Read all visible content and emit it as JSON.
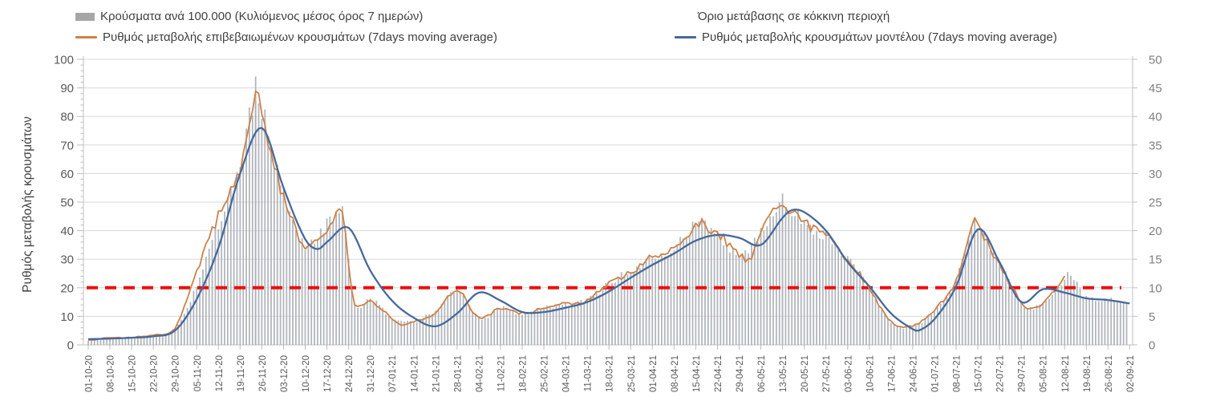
{
  "chart_data": {
    "type": "combo",
    "title": "",
    "background": "#ffffff",
    "grid_color": "#d9d9d9",
    "axis_color": "#bfbfbf",
    "left_axis": {
      "label": "Ρυθμός μεταβολής κρουσμάτων",
      "min": 0,
      "max": 100,
      "step": 10,
      "tick_labels": [
        "0",
        "10",
        "20",
        "30",
        "40",
        "50",
        "60",
        "70",
        "80",
        "90",
        "100"
      ],
      "text_color": "#595959"
    },
    "right_axis": {
      "min": 0,
      "max": 50,
      "step": 5,
      "tick_labels": [
        "0",
        "5",
        "10",
        "15",
        "20",
        "25",
        "30",
        "35",
        "40",
        "45",
        "50"
      ],
      "text_color": "#7f7f7f"
    },
    "x_tick_labels": [
      "01-10-20",
      "08-10-20",
      "15-10-20",
      "22-10-20",
      "29-10-20",
      "05-11-20",
      "12-11-20",
      "19-11-20",
      "26-11-20",
      "03-12-20",
      "10-12-20",
      "17-12-20",
      "24-12-20",
      "31-12-20",
      "07-01-21",
      "14-01-21",
      "21-01-21",
      "28-01-21",
      "04-02-21",
      "11-02-21",
      "18-02-21",
      "25-02-21",
      "04-03-21",
      "11-03-21",
      "18-03-21",
      "25-03-21",
      "01-04-21",
      "08-04-21",
      "15-04-21",
      "22-04-21",
      "29-04-21",
      "06-05-21",
      "13-05-21",
      "20-05-21",
      "27-05-21",
      "03-06-21",
      "10-06-21",
      "17-06-21",
      "24-06-21",
      "01-07-21",
      "08-07-21",
      "15-07-21",
      "22-07-21",
      "29-07-21",
      "05-08-21",
      "12-08-21",
      "19-08-21",
      "26-08-21",
      "02-09-21"
    ],
    "threshold": {
      "label": "Όριο μετάβασης σε κόκκινη περιοχή",
      "value_left_axis": 20,
      "value_right_axis": 10,
      "color": "#ec0e0e",
      "style": "dashed"
    },
    "series": [
      {
        "name": "Κρούσματα ανά 100.000 (Κυλιόμενος μέσος όρος 7 ημερών)",
        "type": "bar",
        "axis": "right",
        "color": "#aab0b6",
        "weekly_values": [
          0.7,
          1.1,
          1.2,
          1.7,
          2.8,
          10.5,
          21,
          31,
          41,
          26,
          17.5,
          21,
          15,
          8,
          4.7,
          4.2,
          6,
          9.5,
          4.7,
          6.5,
          5.5,
          6.5,
          7.2,
          7.8,
          10.8,
          12.8,
          15.5,
          17,
          21,
          19.5,
          16,
          19.5,
          25,
          21.5,
          19,
          15,
          10,
          4,
          3.2,
          6,
          11.5,
          21,
          14,
          7.5,
          7.2,
          11.8,
          8.3,
          8,
          7.8
        ],
        "extra_points": {
          "24-11-20": 44,
          "22-12-20": 23,
          "26-12-20": 7,
          "12-05-21": 25.5,
          "14-07-21": 21.5,
          "31-07-21": 6.5,
          "14-08-21": 12
        },
        "last_date": "01-09-21"
      },
      {
        "name": "Ρυθμός μεταβολής επιβεβαιωμένων κρουσμάτων (7days moving average)",
        "type": "line",
        "axis": "left",
        "color": "#ce8147",
        "weekly_values": [
          1.5,
          2.5,
          2.5,
          3.5,
          6,
          26,
          45,
          62,
          80,
          52,
          35,
          41,
          28,
          15.5,
          9.3,
          8.4,
          11,
          19,
          9.5,
          13,
          11,
          13,
          14.5,
          15.5,
          21.5,
          25.5,
          31,
          34,
          42,
          39,
          32,
          39,
          50,
          43,
          38,
          30,
          20,
          8,
          6.5,
          12,
          23,
          42,
          28,
          15,
          14.5,
          23.5,
          null,
          null,
          null
        ],
        "extra_points": {
          "24-11-20": 89,
          "22-12-20": 46,
          "26-12-20": 14,
          "10-01-21": 7.2,
          "17-04-21": 42.5,
          "02-05-21": 29.5,
          "12-05-21": 50.5,
          "14-07-21": 43,
          "31-07-21": 13
        },
        "last_date": "12-08-21"
      },
      {
        "name": "Ρυθμός μεταβολής κρουσμάτων μοντέλου (7days moving average)",
        "type": "line",
        "axis": "left",
        "color": "#46699b",
        "weekly_values": [
          2,
          2.2,
          2.5,
          3,
          5,
          16,
          34,
          60,
          76,
          55,
          37,
          36,
          41,
          26,
          15.5,
          9.5,
          6.5,
          11,
          18.3,
          15.5,
          11.5,
          11.5,
          13,
          15,
          18.7,
          23.5,
          28,
          32,
          36.5,
          38.5,
          37.5,
          35,
          44.5,
          46.5,
          40,
          29,
          20.5,
          11,
          5.5,
          9,
          20.5,
          40.5,
          29,
          15,
          19.5,
          18.3,
          16.3,
          15.7,
          14.5
        ],
        "extra_points": {
          "14-12-20": 33.5,
          "16-05-21": 47.2,
          "26-06-21": 5
        },
        "last_date": "02-09-21"
      }
    ],
    "notable_bar_spikes": [
      {
        "date": "24-11-20",
        "value": 47
      },
      {
        "date": "13-05-21",
        "value": 26.5
      }
    ],
    "date_range": {
      "first": "01-10-20",
      "last": "02-09-21"
    }
  }
}
